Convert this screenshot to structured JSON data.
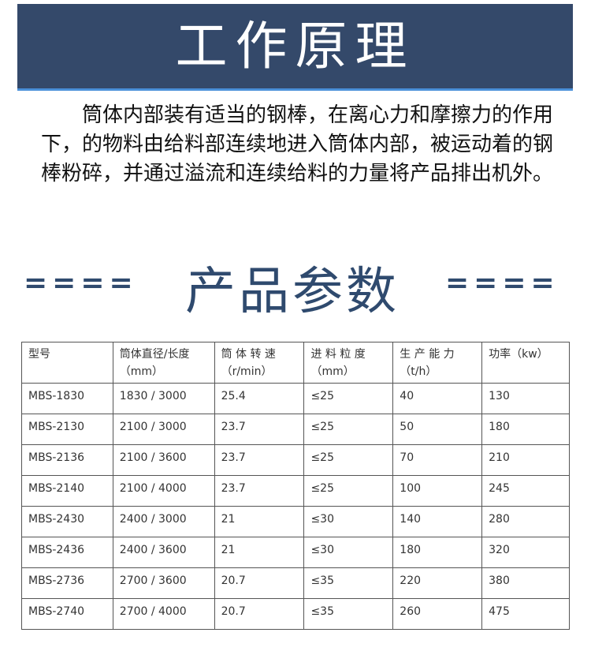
{
  "banner": {
    "title": "工作原理",
    "bg_color": "#34496a"
  },
  "description": "筒体内部装有适当的钢棒，在离心力和摩擦力的作用下，的物料由给料部连续地进入筒体内部，被运动着的钢棒粉碎，并通过溢流和连续给料的力量将产品排出机外。",
  "params_section": {
    "left_deco": "====",
    "title": "产品参数",
    "right_deco": "====",
    "color": "#2f4a6e"
  },
  "table": {
    "headers": [
      {
        "label": "型号",
        "unit": ""
      },
      {
        "label": "筒体直径/长度",
        "unit": "（mm）"
      },
      {
        "label": "筒 体 转 速",
        "unit": "（r/min）"
      },
      {
        "label": "进 料 粒 度",
        "unit": "（mm）"
      },
      {
        "label": "生 产 能 力",
        "unit": "（t/h）"
      },
      {
        "label": "功率（kw）",
        "unit": ""
      }
    ],
    "rows": [
      [
        "MBS-1830",
        "1830 / 3000",
        "25.4",
        "≤25",
        "40",
        "130"
      ],
      [
        "MBS-2130",
        "2100 / 3000",
        "23.7",
        "≤25",
        "50",
        "180"
      ],
      [
        "MBS-2136",
        "2100 / 3600",
        "23.7",
        "≤25",
        "70",
        "210"
      ],
      [
        "MBS-2140",
        "2100 / 4000",
        "23.7",
        "≤25",
        "100",
        "245"
      ],
      [
        "MBS-2430",
        "2400 / 3000",
        "21",
        "≤30",
        "140",
        "280"
      ],
      [
        "MBS-2436",
        "2400 / 3600",
        "21",
        "≤30",
        "180",
        "320"
      ],
      [
        "MBS-2736",
        "2700 / 3600",
        "20.7",
        "≤35",
        "220",
        "380"
      ],
      [
        "MBS-2740",
        "2700 / 4000",
        "20.7",
        "≤35",
        "260",
        "475"
      ]
    ]
  }
}
